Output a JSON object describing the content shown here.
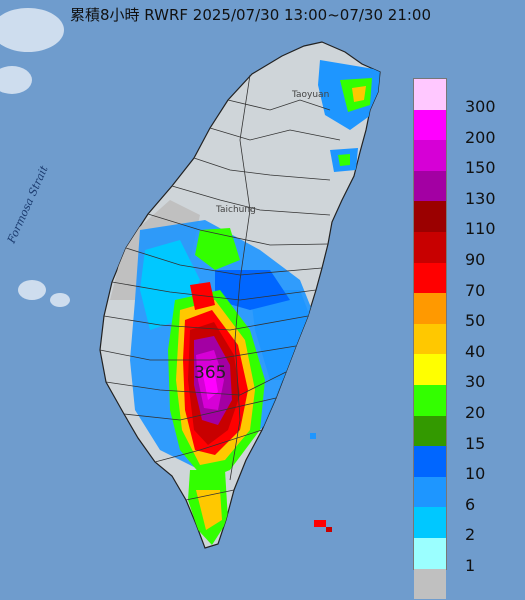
{
  "title": "累積8小時 RWRF 2025/07/30 13:00~07/30 21:00",
  "labels": {
    "strait": "Formosa Strait",
    "taoyuan": "Taoyuan",
    "taichung": "Taichung",
    "max_value": "365"
  },
  "legend": [
    {
      "label": "300",
      "color": "#ffc8ff"
    },
    {
      "label": "200",
      "color": "#ff00ff"
    },
    {
      "label": "150",
      "color": "#d600d6"
    },
    {
      "label": "130",
      "color": "#a300a3"
    },
    {
      "label": "110",
      "color": "#9b0000"
    },
    {
      "label": "90",
      "color": "#c80000"
    },
    {
      "label": "70",
      "color": "#ff0000"
    },
    {
      "label": "50",
      "color": "#ff9900"
    },
    {
      "label": "40",
      "color": "#ffc800"
    },
    {
      "label": "30",
      "color": "#ffff00"
    },
    {
      "label": "20",
      "color": "#33ff00"
    },
    {
      "label": "15",
      "color": "#339900"
    },
    {
      "label": "10",
      "color": "#0066ff"
    },
    {
      "label": "6",
      "color": "#1e96ff"
    },
    {
      "label": "2",
      "color": "#00c8ff"
    },
    {
      "label": "1",
      "color": "#9bffff"
    },
    {
      "label": "",
      "color": "#c0c0c0"
    }
  ]
}
